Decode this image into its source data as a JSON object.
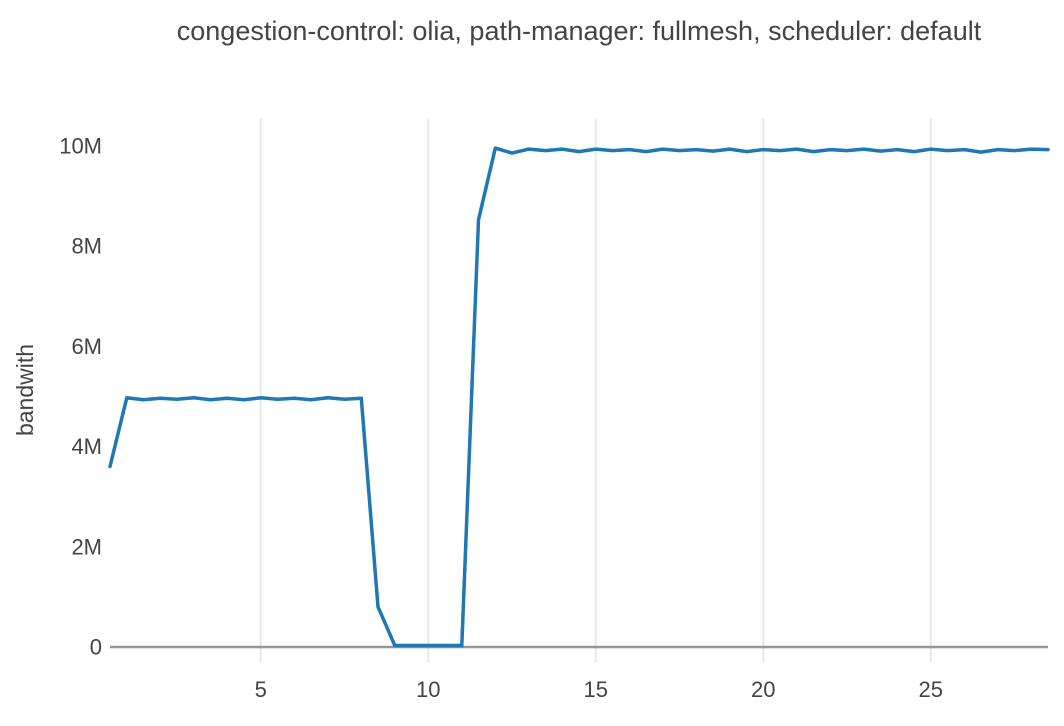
{
  "title": "congestion-control: olia, path-manager: fullmesh, scheduler: default",
  "colors": {
    "line": "#1f77b4",
    "text": "#444444",
    "grid": "#e8e8e8",
    "zeroline": "#969696",
    "background": "#ffffff"
  },
  "chart_data": {
    "type": "line",
    "title": "congestion-control: olia, path-manager: fullmesh, scheduler: default",
    "xlabel": "",
    "ylabel": "bandwith",
    "legend_position": "none",
    "grid": "vertical-only",
    "xlim": [
      0.5,
      28.5
    ],
    "ylim": [
      -300000,
      10550000
    ],
    "x_ticks": {
      "values": [
        5,
        10,
        15,
        20,
        25
      ],
      "labels": [
        "5",
        "10",
        "15",
        "20",
        "25"
      ]
    },
    "y_ticks": {
      "values": [
        0,
        2000000,
        4000000,
        6000000,
        8000000,
        10000000
      ],
      "labels": [
        "0",
        "2M",
        "4M",
        "6M",
        "8M",
        "10M"
      ]
    },
    "series": [
      {
        "name": "bandwidth",
        "color": "#1f77b4",
        "x": [
          0.5,
          1,
          1.5,
          2,
          2.5,
          3,
          3.5,
          4,
          4.5,
          5,
          5.5,
          6,
          6.5,
          7,
          7.5,
          8,
          8.5,
          9,
          9.5,
          10,
          10.5,
          11,
          11.5,
          12,
          12.5,
          13,
          13.5,
          14,
          14.5,
          15,
          15.5,
          16,
          16.5,
          17,
          17.5,
          18,
          18.5,
          19,
          19.5,
          20,
          20.5,
          21,
          21.5,
          22,
          22.5,
          23,
          23.5,
          24,
          24.5,
          25,
          25.5,
          26,
          26.5,
          27,
          27.5,
          28,
          28.5
        ],
        "y": [
          3600000,
          4970000,
          4930000,
          4960000,
          4940000,
          4970000,
          4930000,
          4960000,
          4930000,
          4970000,
          4940000,
          4960000,
          4930000,
          4970000,
          4940000,
          4960000,
          800000,
          30000,
          30000,
          30000,
          30000,
          30000,
          8520000,
          9950000,
          9850000,
          9930000,
          9900000,
          9930000,
          9880000,
          9930000,
          9900000,
          9920000,
          9880000,
          9930000,
          9900000,
          9920000,
          9890000,
          9930000,
          9880000,
          9920000,
          9900000,
          9930000,
          9880000,
          9920000,
          9900000,
          9930000,
          9890000,
          9920000,
          9880000,
          9930000,
          9900000,
          9920000,
          9870000,
          9920000,
          9900000,
          9930000,
          9920000
        ]
      }
    ]
  }
}
